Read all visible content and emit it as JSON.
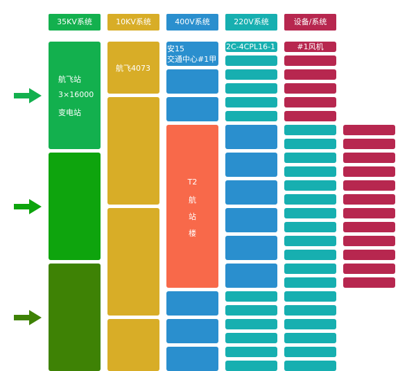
{
  "headers": {
    "kv35": "35KV系统",
    "kv10": "10KV系统",
    "v400": "400V系统",
    "v220": "220V系统",
    "device": "设备/系统"
  },
  "substation": {
    "line1": "航飞站",
    "line2": "3×16000",
    "line3": "变电站"
  },
  "kv10_block": {
    "label": "航飞4073"
  },
  "v400_block": {
    "line1": "安15",
    "line2": "交通中心#1甲"
  },
  "t2_block": {
    "line1": "T2",
    "line2": "航",
    "line3": "站",
    "line4": "楼"
  },
  "v220_block": {
    "label": "2C-4CPL16-1"
  },
  "device_block": {
    "label": "#1风机"
  },
  "colors": {
    "kv35_header": "#13b04e",
    "kv10": "#d8ad27",
    "v400": "#2a8fce",
    "v220": "#17afb0",
    "device": "#b7274f",
    "t2": "#f8694a",
    "green_top": "#13b04e",
    "green_mid": "#0ea40d",
    "green_bot": "#3e8205"
  }
}
